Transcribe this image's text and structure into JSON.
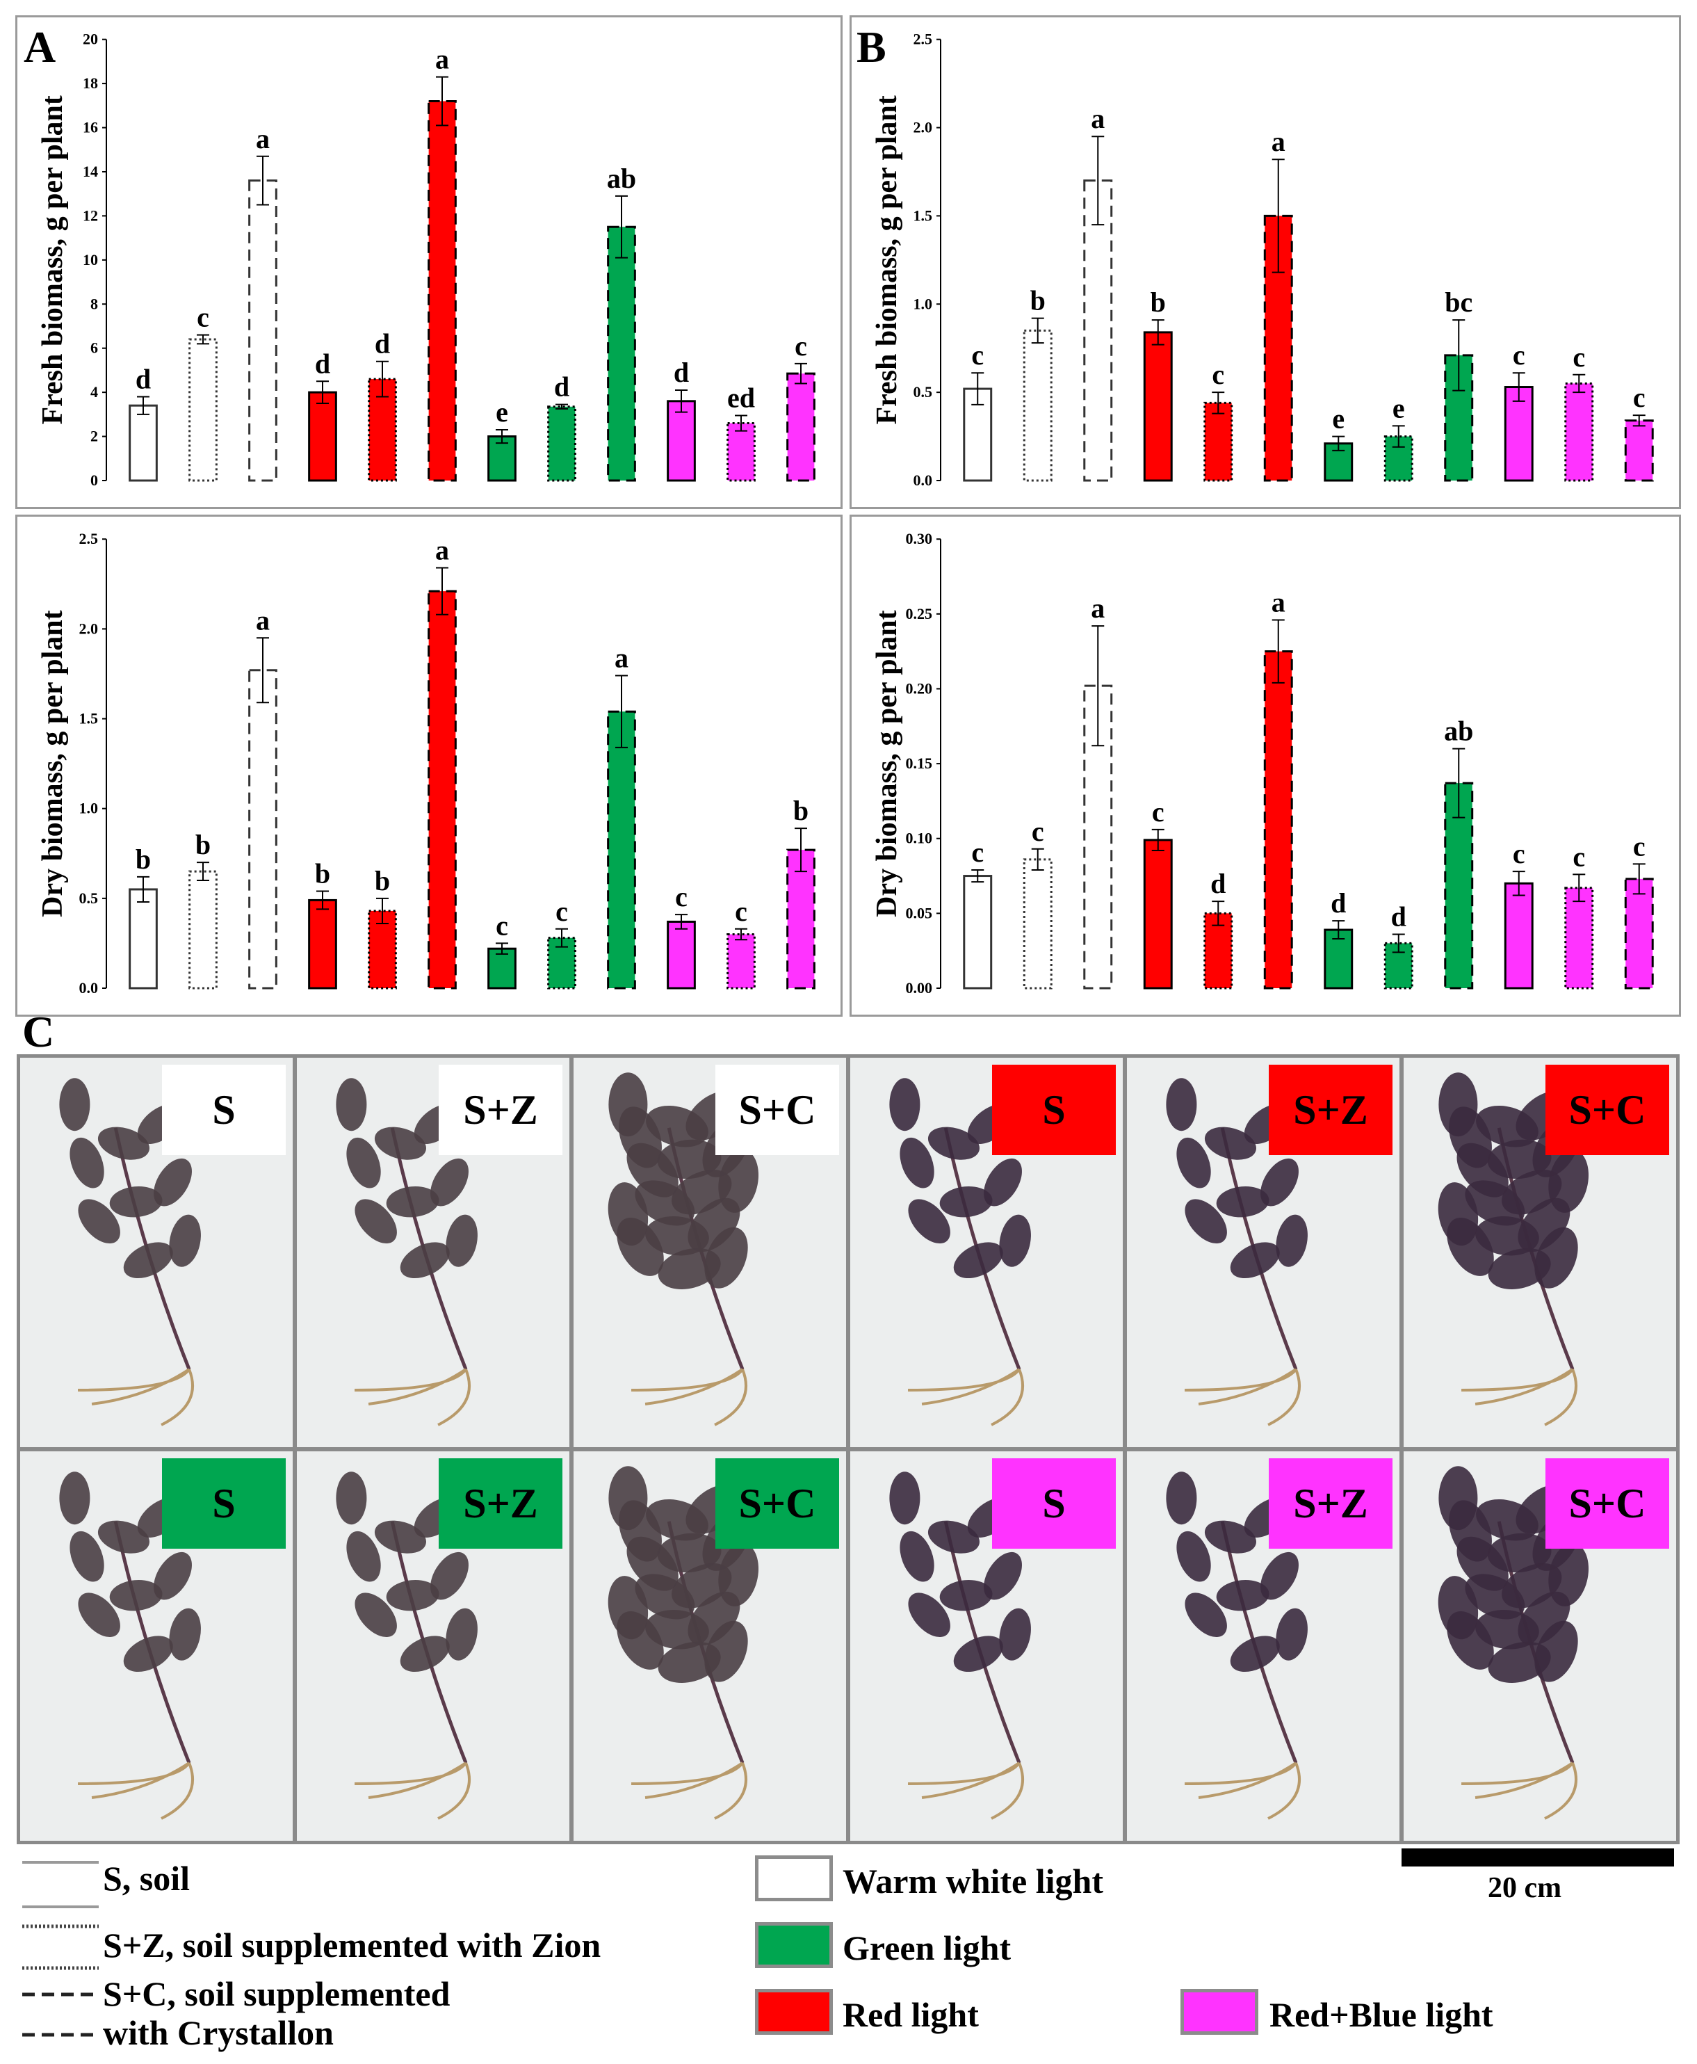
{
  "panels": {
    "A": {
      "letter": "A"
    },
    "B": {
      "letter": "B"
    },
    "C": {
      "letter": "C"
    }
  },
  "chart_data": [
    {
      "panel": "A",
      "type": "bar",
      "ylabel": "Fresh biomass, g per plant",
      "ylim": [
        0,
        20
      ],
      "yticks": [
        "0",
        "2",
        "4",
        "6",
        "8",
        "10",
        "12",
        "14",
        "16",
        "18",
        "20"
      ],
      "values": [
        3.4,
        6.4,
        13.6,
        4.0,
        4.6,
        17.2,
        2.0,
        3.35,
        11.5,
        3.6,
        2.6,
        4.85
      ],
      "errors": [
        0.4,
        0.2,
        1.1,
        0.5,
        0.8,
        1.1,
        0.3,
        0.1,
        1.4,
        0.5,
        0.35,
        0.45
      ],
      "letters": [
        "d",
        "c",
        "a",
        "d",
        "d",
        "a",
        "e",
        "d",
        "ab",
        "d",
        "ed",
        "c"
      ]
    },
    {
      "panel": "B",
      "type": "bar",
      "ylabel": "Fresh biomass, g per plant",
      "ylim": [
        0,
        2.5
      ],
      "yticks": [
        "0.0",
        "0.5",
        "1.0",
        "1.5",
        "2.0",
        "2.5"
      ],
      "values": [
        0.52,
        0.85,
        1.7,
        0.84,
        0.44,
        1.5,
        0.21,
        0.25,
        0.71,
        0.53,
        0.55,
        0.34
      ],
      "errors": [
        0.09,
        0.07,
        0.25,
        0.07,
        0.06,
        0.32,
        0.04,
        0.06,
        0.2,
        0.08,
        0.05,
        0.03
      ],
      "letters": [
        "c",
        "b",
        "a",
        "b",
        "c",
        "a",
        "e",
        "e",
        "bc",
        "c",
        "c",
        "c"
      ]
    },
    {
      "panel": "A",
      "type": "bar",
      "ylabel": "Dry biomass, g per plant",
      "ylim": [
        0,
        2.5
      ],
      "yticks": [
        "0.0",
        "0.5",
        "1.0",
        "1.5",
        "2.0",
        "2.5"
      ],
      "values": [
        0.55,
        0.65,
        1.77,
        0.49,
        0.43,
        2.21,
        0.22,
        0.28,
        1.54,
        0.37,
        0.3,
        0.77
      ],
      "errors": [
        0.07,
        0.05,
        0.18,
        0.05,
        0.07,
        0.13,
        0.03,
        0.05,
        0.2,
        0.04,
        0.03,
        0.12
      ],
      "letters": [
        "b",
        "b",
        "a",
        "b",
        "b",
        "a",
        "c",
        "c",
        "a",
        "c",
        "c",
        "b"
      ]
    },
    {
      "panel": "B",
      "type": "bar",
      "ylabel": "Dry biomass, g per plant",
      "ylim": [
        0,
        0.3
      ],
      "yticks": [
        "0.00",
        "0.05",
        "0.10",
        "0.15",
        "0.20",
        "0.25",
        "0.30"
      ],
      "values": [
        0.075,
        0.086,
        0.202,
        0.099,
        0.05,
        0.225,
        0.039,
        0.03,
        0.137,
        0.07,
        0.067,
        0.073
      ],
      "errors": [
        0.004,
        0.007,
        0.04,
        0.007,
        0.008,
        0.021,
        0.006,
        0.006,
        0.023,
        0.008,
        0.009,
        0.01
      ],
      "letters": [
        "c",
        "c",
        "a",
        "c",
        "d",
        "a",
        "d",
        "d",
        "ab",
        "c",
        "c",
        "c"
      ]
    }
  ],
  "bar_styles": [
    {
      "light": "white",
      "substrate": "S"
    },
    {
      "light": "white",
      "substrate": "S+Z"
    },
    {
      "light": "white",
      "substrate": "S+C"
    },
    {
      "light": "red",
      "substrate": "S"
    },
    {
      "light": "red",
      "substrate": "S+Z"
    },
    {
      "light": "red",
      "substrate": "S+C"
    },
    {
      "light": "green",
      "substrate": "S"
    },
    {
      "light": "green",
      "substrate": "S+Z"
    },
    {
      "light": "green",
      "substrate": "S+C"
    },
    {
      "light": "pink",
      "substrate": "S"
    },
    {
      "light": "pink",
      "substrate": "S+Z"
    },
    {
      "light": "pink",
      "substrate": "S+C"
    }
  ],
  "colors": {
    "white": "#ffffff",
    "red": "#ff0000",
    "green": "#00a650",
    "pink": "#ff33ff",
    "bar_outline": "#000000",
    "white_outline": "#333333",
    "frame": "#9a9a9a"
  },
  "photos": {
    "rows": [
      [
        {
          "label": "S",
          "light": "white"
        },
        {
          "label": "S+Z",
          "light": "white"
        },
        {
          "label": "S+C",
          "light": "white"
        },
        {
          "label": "S",
          "light": "red"
        },
        {
          "label": "S+Z",
          "light": "red"
        },
        {
          "label": "S+C",
          "light": "red"
        }
      ],
      [
        {
          "label": "S",
          "light": "green"
        },
        {
          "label": "S+Z",
          "light": "green"
        },
        {
          "label": "S+C",
          "light": "green"
        },
        {
          "label": "S",
          "light": "pink"
        },
        {
          "label": "S+Z",
          "light": "pink"
        },
        {
          "label": "S+C",
          "light": "pink"
        }
      ]
    ]
  },
  "legend": {
    "line_items": [
      {
        "style": "solid",
        "text": "S, soil"
      },
      {
        "style": "dotted",
        "text": "S+Z, soil supplemented with Zion"
      },
      {
        "style": "dashed",
        "text": "S+C, soil supplemented"
      },
      {
        "style": "dashed",
        "text": "with Crystallon"
      }
    ],
    "light_items": [
      {
        "color": "#ffffff",
        "text": "Warm white light"
      },
      {
        "color": "#00a650",
        "text": "Green light"
      },
      {
        "color": "#ff0000",
        "text": "Red light"
      },
      {
        "color": "#ff33ff",
        "text": "Red+Blue light"
      }
    ],
    "scale_bar": "20 cm"
  }
}
